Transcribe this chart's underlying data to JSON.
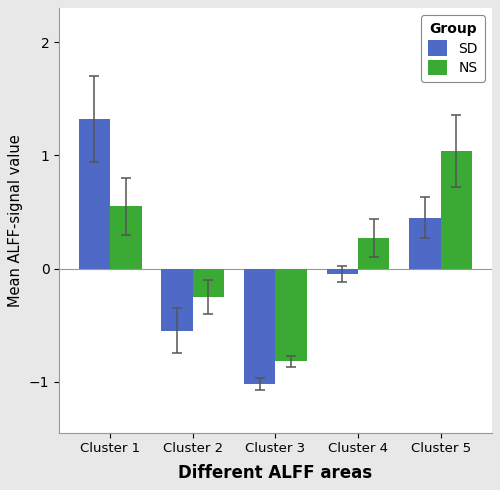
{
  "categories": [
    "Cluster 1",
    "Cluster 2",
    "Cluster 3",
    "Cluster 4",
    "Cluster 5"
  ],
  "SD_values": [
    1.32,
    -0.55,
    -1.02,
    -0.05,
    0.45
  ],
  "NS_values": [
    0.55,
    -0.25,
    -0.82,
    0.27,
    1.04
  ],
  "SD_errors": [
    0.38,
    0.2,
    0.05,
    0.07,
    0.18
  ],
  "NS_errors": [
    0.25,
    0.15,
    0.05,
    0.17,
    0.32
  ],
  "SD_color": "#4f69c6",
  "NS_color": "#3aaa35",
  "xlabel": "Different ALFF areas",
  "ylabel": "Mean ALFF-signal value",
  "ylim": [
    -1.45,
    2.3
  ],
  "yticks": [
    -1,
    0,
    1,
    2
  ],
  "bar_width": 0.38,
  "legend_title": "Group",
  "legend_labels": [
    "SD",
    "NS"
  ],
  "fig_background": "#e8e8e8",
  "plot_background": "#ffffff",
  "figsize": [
    5.0,
    4.9
  ],
  "dpi": 100
}
